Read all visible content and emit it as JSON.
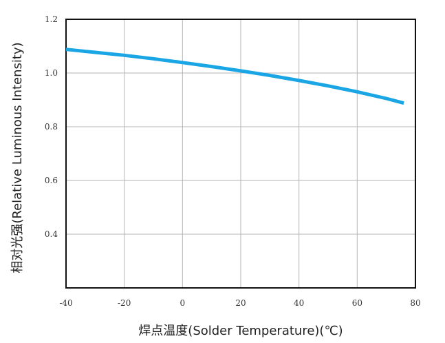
{
  "chart_data": {
    "type": "line",
    "xlabel": "焊点温度(Solder Temperature)(℃)",
    "ylabel": "相对光强(Relative Luminous Intensity)",
    "xlim": [
      -40,
      80
    ],
    "ylim": [
      0.2,
      1.2
    ],
    "x_ticks": [
      -40,
      -20,
      0,
      20,
      40,
      60,
      80
    ],
    "x_tick_labels": [
      "-40",
      "-20",
      "0",
      "20",
      "40",
      "60",
      "80"
    ],
    "y_ticks": [
      0.4,
      0.6,
      0.8,
      1.0,
      1.2
    ],
    "y_tick_labels": [
      "0.4",
      "0.6",
      "0.8",
      "1.0",
      "1.2"
    ],
    "grid": true,
    "series": [
      {
        "color": "#1aa6e4",
        "x": [
          -40,
          -30,
          -20,
          -10,
          0,
          10,
          20,
          30,
          40,
          50,
          60,
          70,
          76
        ],
        "y": [
          1.088,
          1.077,
          1.066,
          1.053,
          1.039,
          1.024,
          1.008,
          0.991,
          0.972,
          0.952,
          0.93,
          0.905,
          0.888
        ]
      }
    ]
  }
}
